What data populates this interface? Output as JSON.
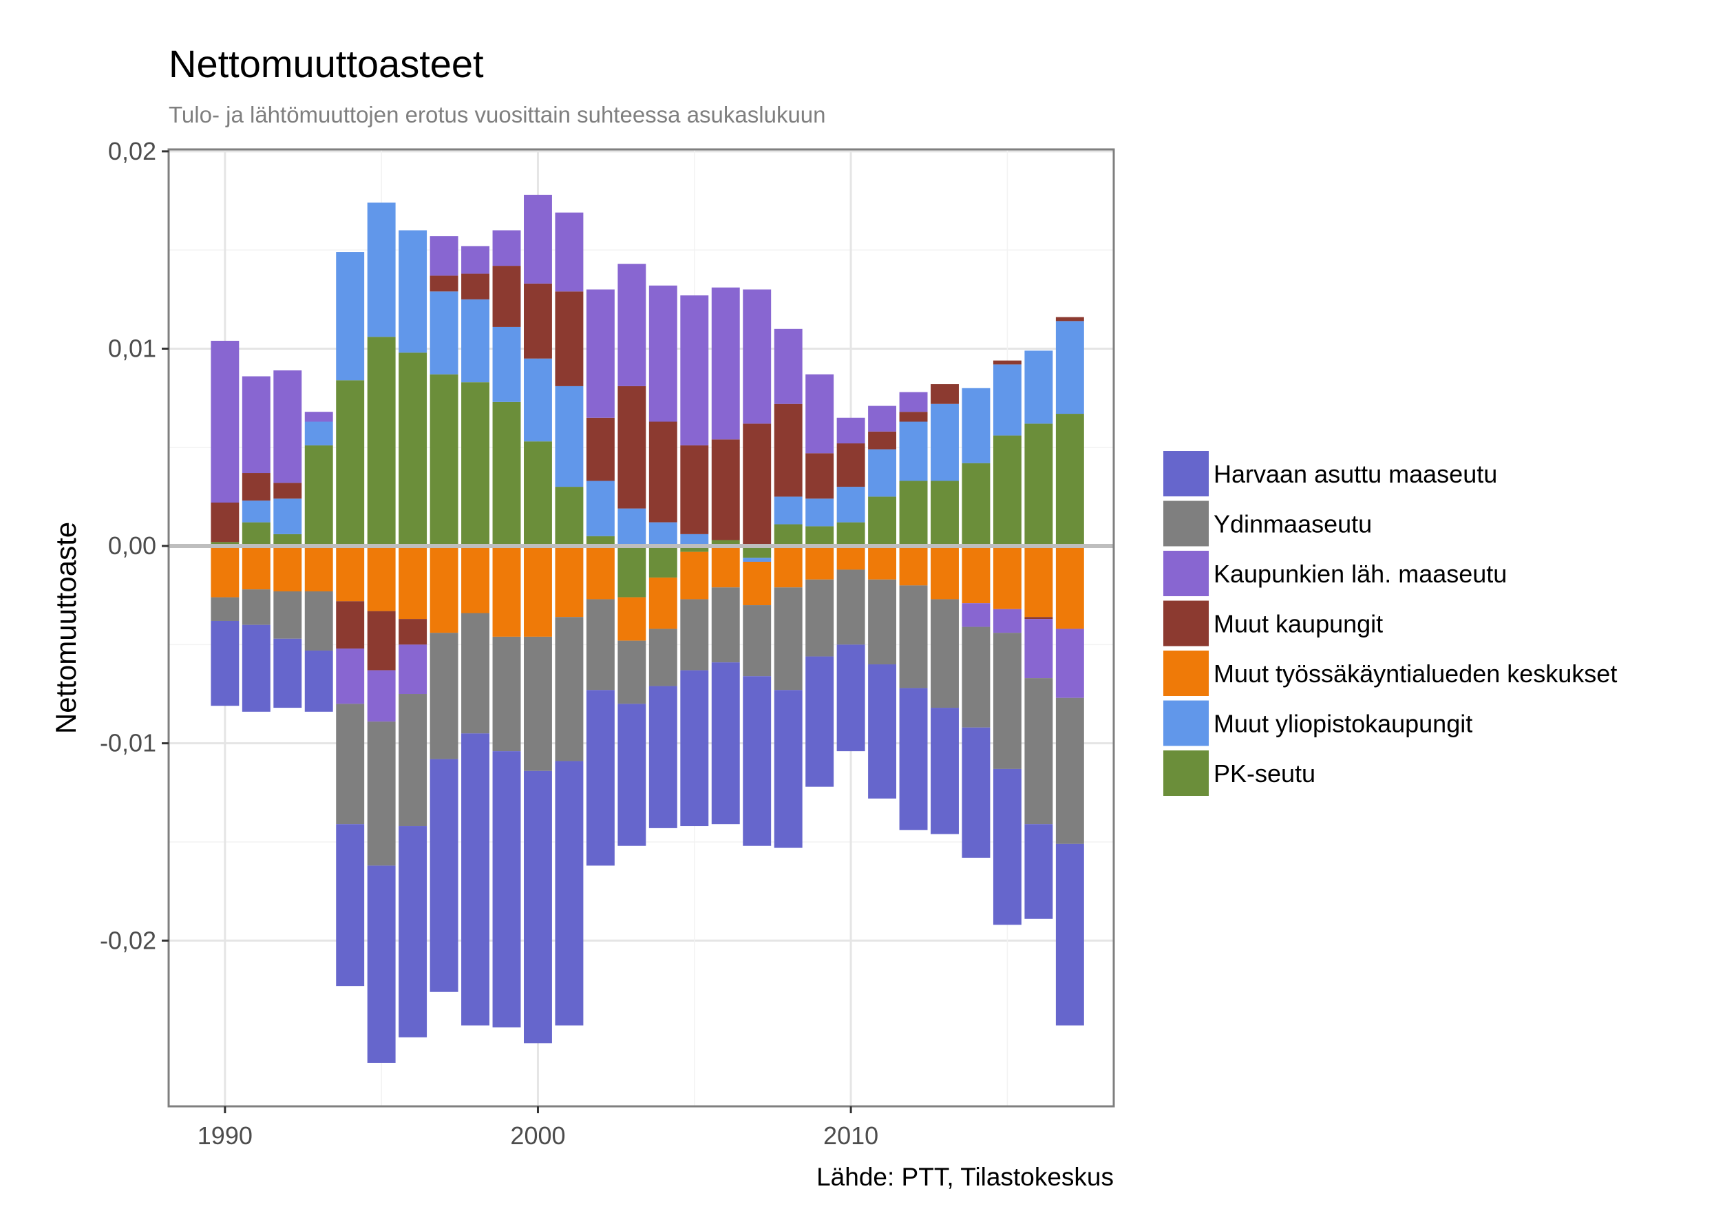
{
  "chart_data": {
    "type": "bar",
    "stacked": "diverging",
    "title": "Nettomuuttoasteet",
    "subtitle": "Tulo- ja lähtömuuttojen erotus vuosittain suhteessa asukaslukuun",
    "xlabel": "",
    "ylabel": "Nettomuuttoaste",
    "caption": "Lähde: PTT, Tilastokeskus",
    "xlim": [
      1988.2,
      2018.4
    ],
    "ylim": [
      -0.0284,
      0.0201
    ],
    "x_ticks": [
      1990,
      2000,
      2010
    ],
    "x_tick_labels": [
      "1990",
      "2000",
      "2010"
    ],
    "y_ticks": [
      -0.02,
      -0.01,
      0,
      0.01,
      0.02
    ],
    "y_tick_labels": [
      "-0,02",
      "-0,01",
      "0,00",
      "0,01",
      "0,02"
    ],
    "grid": true,
    "zero_line": true,
    "legend_position": "right",
    "categories": [
      1990,
      1991,
      1992,
      1993,
      1994,
      1995,
      1996,
      1997,
      1998,
      1999,
      2000,
      2001,
      2002,
      2003,
      2004,
      2005,
      2006,
      2007,
      2008,
      2009,
      2010,
      2011,
      2012,
      2013,
      2014,
      2015,
      2016,
      2017
    ],
    "series": [
      {
        "name": "PK-seutu",
        "color": "#6b8e3a",
        "values": [
          0.0002,
          0.0012,
          0.0006,
          0.0051,
          0.0084,
          0.0106,
          0.0098,
          0.0087,
          0.0083,
          0.0073,
          0.0053,
          0.003,
          0.0005,
          -0.0026,
          -0.0016,
          -0.0003,
          0.0003,
          -0.0006,
          0.0011,
          0.001,
          0.0012,
          0.0025,
          0.0033,
          0.0033,
          0.0042,
          0.0056,
          0.0062,
          0.0067
        ]
      },
      {
        "name": "Muut yliopistokaupungit",
        "color": "#6197ea",
        "values": [
          0,
          0.0011,
          0.0018,
          0.0012,
          0.0065,
          0.0068,
          0.0062,
          0.0042,
          0.0042,
          0.0038,
          0.0042,
          0.0051,
          0.0028,
          0.0019,
          0.0012,
          0.0006,
          0,
          -0.0002,
          0.0014,
          0.0014,
          0.0018,
          0.0024,
          0.003,
          0.0039,
          0.0038,
          0.0036,
          0.0037,
          0.0047
        ]
      },
      {
        "name": "Muut työssäkäyntialueden keskukset",
        "color": "#ef7a08",
        "values": [
          -0.0026,
          -0.0022,
          -0.0023,
          -0.0023,
          -0.0028,
          -0.0033,
          -0.0037,
          -0.0044,
          -0.0034,
          -0.0046,
          -0.0046,
          -0.0036,
          -0.0027,
          -0.0022,
          -0.0026,
          -0.0024,
          -0.0021,
          -0.0022,
          -0.0021,
          -0.0017,
          -0.0012,
          -0.0017,
          -0.002,
          -0.0027,
          -0.0029,
          -0.0032,
          -0.0036,
          -0.0042
        ]
      },
      {
        "name": "Muut kaupungit",
        "color": "#8c3a30",
        "values": [
          0.002,
          0.0014,
          0.0008,
          0,
          -0.0024,
          -0.003,
          -0.0013,
          0.0008,
          0.0013,
          0.0031,
          0.0038,
          0.0048,
          0.0032,
          0.0062,
          0.0051,
          0.0045,
          0.0051,
          0.0062,
          0.0047,
          0.0023,
          0.0022,
          0.0009,
          0.0005,
          0.001,
          0,
          0.0002,
          -0.0001,
          0.0002
        ]
      },
      {
        "name": "Kaupunkien läh. maaseutu",
        "color": "#8866d1",
        "values": [
          0.0082,
          0.0049,
          0.0057,
          0.0005,
          -0.0028,
          -0.0026,
          -0.0025,
          0.002,
          0.0014,
          0.0018,
          0.0045,
          0.004,
          0.0065,
          0.0062,
          0.0069,
          0.0076,
          0.0077,
          0.0068,
          0.0038,
          0.004,
          0.0013,
          0.0013,
          0.001,
          0,
          -0.0012,
          -0.0012,
          -0.003,
          -0.0035
        ]
      },
      {
        "name": "Ydinmaaseutu",
        "color": "#7f7f7f",
        "values": [
          -0.0012,
          -0.0018,
          -0.0024,
          -0.003,
          -0.0061,
          -0.0073,
          -0.0067,
          -0.0064,
          -0.0061,
          -0.0058,
          -0.0068,
          -0.0073,
          -0.0046,
          -0.0032,
          -0.0029,
          -0.0036,
          -0.0038,
          -0.0036,
          -0.0052,
          -0.0039,
          -0.0038,
          -0.0043,
          -0.0052,
          -0.0055,
          -0.0051,
          -0.0069,
          -0.0074,
          -0.0074
        ]
      },
      {
        "name": "Harvaan asuttu maaseutu",
        "color": "#6666cc",
        "values": [
          -0.0043,
          -0.0044,
          -0.0035,
          -0.0031,
          -0.0082,
          -0.01,
          -0.0107,
          -0.0118,
          -0.0148,
          -0.014,
          -0.0138,
          -0.0134,
          -0.0089,
          -0.0072,
          -0.0072,
          -0.0079,
          -0.0082,
          -0.0086,
          -0.008,
          -0.0066,
          -0.0054,
          -0.0068,
          -0.0072,
          -0.0064,
          -0.0066,
          -0.0079,
          -0.0048,
          -0.0092
        ]
      }
    ]
  }
}
